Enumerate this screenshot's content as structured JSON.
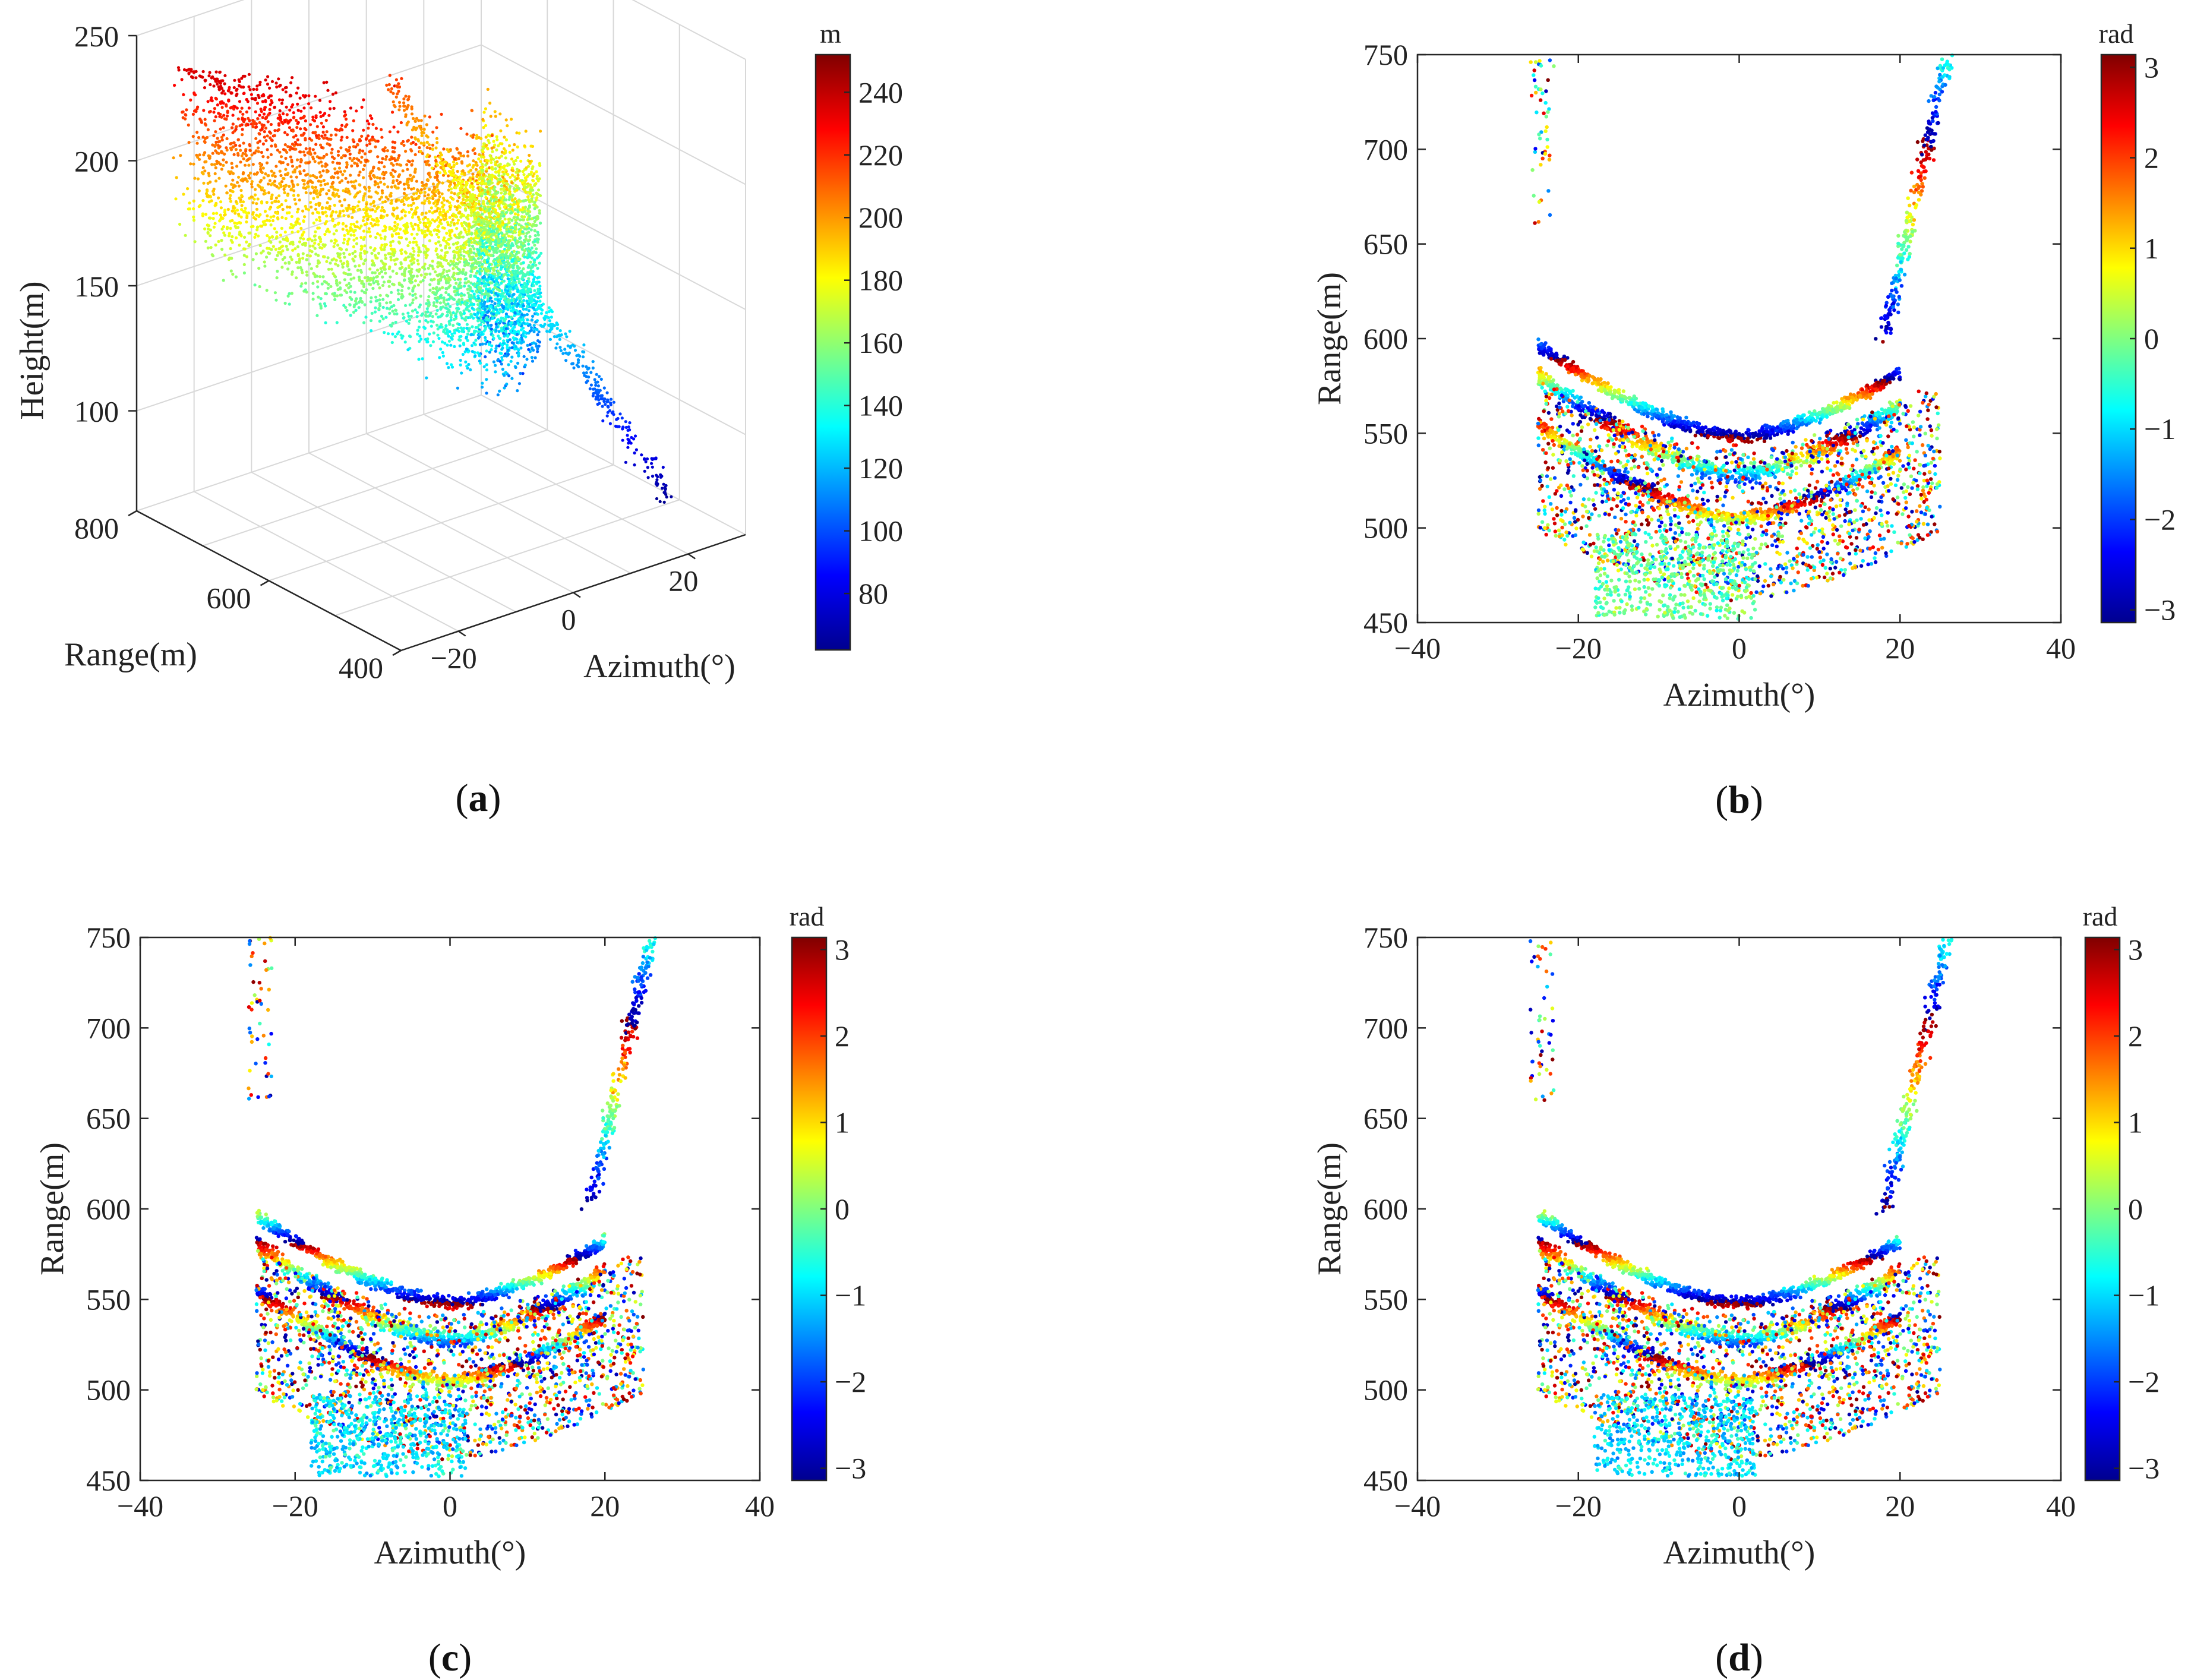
{
  "figure": {
    "colors": {
      "jet": [
        "#00008f",
        "#0000ff",
        "#0080ff",
        "#00ffff",
        "#80ff80",
        "#ffff00",
        "#ff8000",
        "#ff0000",
        "#800000"
      ]
    }
  },
  "chart_data": [
    {
      "id": "a",
      "type": "scatter",
      "projection": "3d",
      "caption": {
        "letter": "a"
      },
      "xlabel": "Azimuth(°)",
      "ylabel": "Range(m)",
      "zlabel": "Height(m)",
      "xticks": [
        "−20",
        "0",
        "20"
      ],
      "yticks": [
        "400",
        "600",
        "800"
      ],
      "zticks": [
        "100",
        "150",
        "200",
        "250"
      ],
      "xlim": [
        -30,
        30
      ],
      "ylim": [
        400,
        800
      ],
      "zlim": [
        60,
        250
      ],
      "grid": true,
      "colorbar": {
        "unit": "m",
        "range": [
          62,
          252
        ],
        "ticks": [
          "80",
          "100",
          "120",
          "140",
          "160",
          "180",
          "200",
          "220",
          "240"
        ]
      },
      "description_series": [
        {
          "name": "",
          "shape": "u-shaped slope point cloud",
          "z_range": [
            70,
            230
          ]
        }
      ]
    },
    {
      "id": "b",
      "type": "scatter",
      "caption": {
        "letter": "b"
      },
      "xlabel": "Azimuth(°)",
      "ylabel": "Range(m)",
      "xlim": [
        -40,
        40
      ],
      "ylim": [
        450,
        750
      ],
      "xticks": [
        "−40",
        "−20",
        "0",
        "20",
        "40"
      ],
      "yticks": [
        "450",
        "500",
        "550",
        "600",
        "650",
        "700",
        "750"
      ],
      "colorbar": {
        "unit": "rad",
        "range": [
          -3.14,
          3.14
        ],
        "ticks": [
          "3",
          "2",
          "1",
          "0",
          "−1",
          "−2",
          "−3"
        ]
      },
      "grid": false
    },
    {
      "id": "c",
      "type": "scatter",
      "caption": {
        "letter": "c"
      },
      "xlabel": "Azimuth(°)",
      "ylabel": "Range(m)",
      "xlim": [
        -40,
        40
      ],
      "ylim": [
        450,
        750
      ],
      "xticks": [
        "−40",
        "−20",
        "0",
        "20",
        "40"
      ],
      "yticks": [
        "450",
        "500",
        "550",
        "600",
        "650",
        "700",
        "750"
      ],
      "colorbar": {
        "unit": "rad",
        "range": [
          -3.14,
          3.14
        ],
        "ticks": [
          "3",
          "2",
          "1",
          "0",
          "−1",
          "−2",
          "−3"
        ]
      },
      "grid": false
    },
    {
      "id": "d",
      "type": "scatter",
      "caption": {
        "letter": "d"
      },
      "xlabel": "Azimuth(°)",
      "ylabel": "Range(m)",
      "xlim": [
        -40,
        40
      ],
      "ylim": [
        450,
        750
      ],
      "xticks": [
        "−40",
        "−20",
        "0",
        "20",
        "40"
      ],
      "yticks": [
        "450",
        "500",
        "550",
        "600",
        "650",
        "700",
        "750"
      ],
      "colorbar": {
        "unit": "rad",
        "range": [
          -3.14,
          3.14
        ],
        "ticks": [
          "3",
          "2",
          "1",
          "0",
          "−1",
          "−2",
          "−3"
        ]
      },
      "grid": false
    }
  ]
}
